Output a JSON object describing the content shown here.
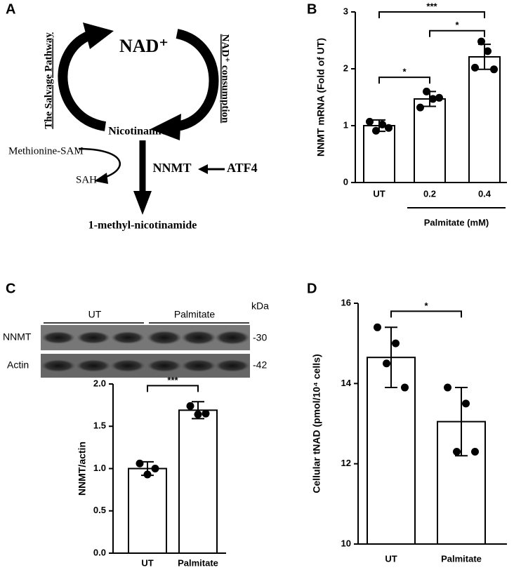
{
  "panel_labels": [
    "A",
    "B",
    "C",
    "D"
  ],
  "diagram": {
    "nad": "NAD⁺",
    "left_label": "The Salvage Pathway",
    "right_label": "NAD⁺ consumption",
    "nicotinamide": "Nicotinamide",
    "donor": "Methionine-SAM",
    "byproduct": "SAH",
    "enzyme": "NNMT",
    "regulator": "ATF4",
    "product": "1-methyl-nicotinamide"
  },
  "blot": {
    "groups": [
      "UT",
      "Palmitate"
    ],
    "unit": "kDa",
    "rows": [
      {
        "label": "NNMT",
        "marker": "-30"
      },
      {
        "label": "Actin",
        "marker": "-42"
      }
    ]
  },
  "chart_data": [
    {
      "type": "bar",
      "y_label": "NNMT mRNA (Fold of UT)",
      "categories": [
        "UT",
        "0.2",
        "0.4"
      ],
      "values": [
        1.0,
        1.47,
        2.21
      ],
      "errors": [
        0.1,
        0.13,
        0.22
      ],
      "points": [
        [
          1.07,
          0.91,
          1.02,
          0.96
        ],
        [
          1.32,
          1.6,
          1.47,
          1.49
        ],
        [
          2.02,
          2.48,
          2.31,
          1.99
        ]
      ],
      "color": "#ffffff",
      "ylim": [
        0,
        3
      ],
      "yticks": [
        0,
        1,
        2,
        3
      ],
      "significance": [
        {
          "between": [
            0,
            1
          ],
          "y": 1.85,
          "label": "*"
        },
        {
          "between": [
            1,
            2
          ],
          "y": 2.67,
          "label": "*"
        },
        {
          "between": [
            0,
            2
          ],
          "y": 3.0,
          "label": "***"
        }
      ],
      "group": {
        "label": "Palmitate (mM)",
        "between": [
          1,
          2
        ]
      }
    },
    {
      "type": "bar",
      "y_label": "NNMT/actin",
      "categories": [
        "UT",
        "Palmitate"
      ],
      "values": [
        1.0,
        1.69
      ],
      "errors": [
        0.08,
        0.1
      ],
      "points": [
        [
          1.06,
          0.93,
          1.0
        ],
        [
          1.74,
          1.64,
          1.65
        ]
      ],
      "color": "#ffffff",
      "ylim": [
        0,
        2
      ],
      "yticks": [
        {
          "value": 0,
          "label": "0.0"
        },
        {
          "value": 0.5,
          "label": "0.5"
        },
        {
          "value": 1,
          "label": "1.0"
        },
        {
          "value": 1.5,
          "label": "1.5"
        },
        {
          "value": 2,
          "label": "2.0"
        }
      ],
      "significance": [
        {
          "between": [
            0,
            1
          ],
          "y": 1.98,
          "label": "***"
        }
      ]
    },
    {
      "type": "bar",
      "y_label": "Cellular tNAD (pmol/10⁴ cells)",
      "categories": [
        "UT",
        "Palmitate"
      ],
      "values": [
        14.65,
        13.05
      ],
      "errors": [
        0.75,
        0.85
      ],
      "points": [
        [
          15.4,
          14.5,
          15.0,
          13.9
        ],
        [
          13.9,
          12.3,
          13.5,
          12.3
        ]
      ],
      "color": "#ffffff",
      "ylim": [
        10,
        16
      ],
      "yticks": [
        10,
        12,
        14,
        16
      ],
      "significance": [
        {
          "between": [
            0,
            1
          ],
          "y": 15.8,
          "label": "*"
        }
      ]
    }
  ]
}
